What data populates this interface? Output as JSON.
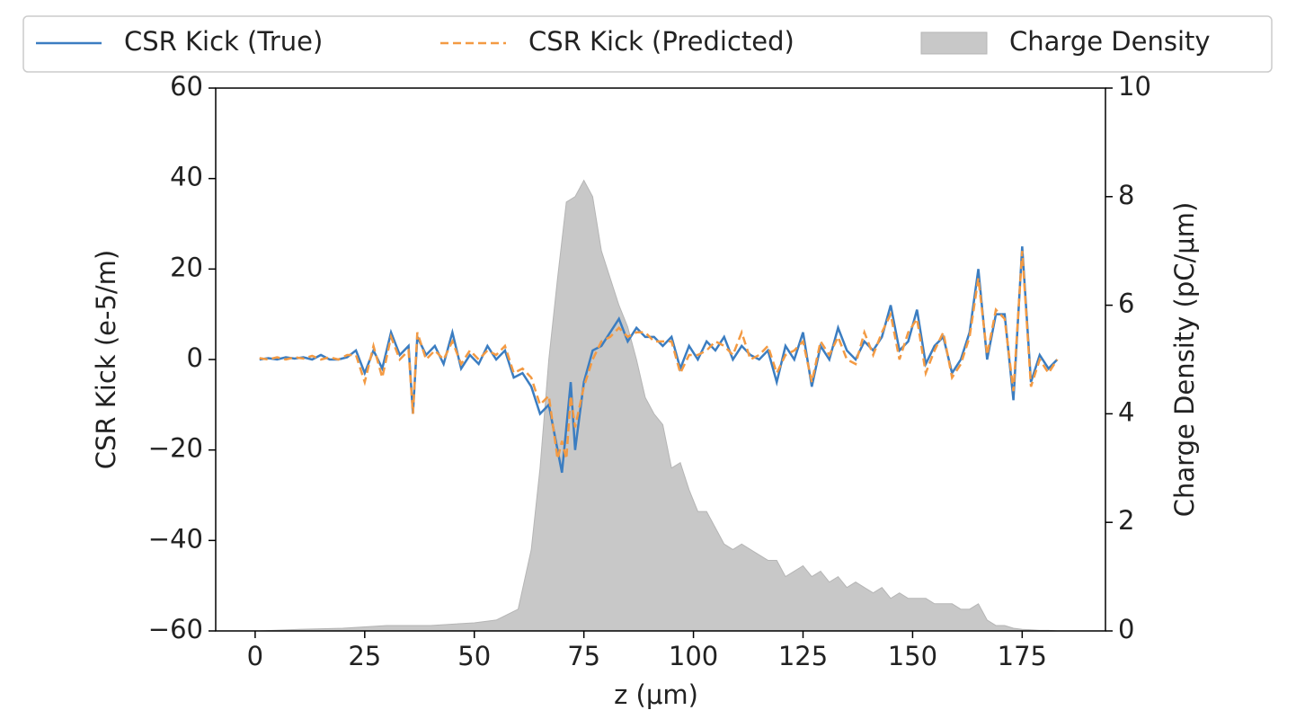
{
  "chart_data": {
    "type": "line",
    "xlabel": "z (μm)",
    "ylabel": "CSR Kick (e-5/m)",
    "y2label": "Charge Density (pC/μm)",
    "xlim": [
      -9,
      194
    ],
    "xticks": [
      0,
      25,
      50,
      75,
      100,
      125,
      150,
      175
    ],
    "ylim": [
      -60,
      60
    ],
    "yticks": [
      {
        "value": -60,
        "label": "−60"
      },
      {
        "value": -40,
        "label": "−40"
      },
      {
        "value": -20,
        "label": "−20"
      },
      0,
      20,
      40,
      60
    ],
    "y2lim": [
      0,
      10
    ],
    "y2ticks": [
      0,
      2,
      4,
      6,
      8,
      10
    ],
    "legend": "upper center",
    "series": [
      {
        "name": "CSR Kick (True)",
        "type": "line",
        "color": "#3b7dc1",
        "dash": false,
        "x": [
          1,
          3,
          5,
          7,
          9,
          11,
          13,
          15,
          17,
          19,
          21,
          23,
          25,
          27,
          29,
          31,
          33,
          35,
          36,
          37,
          39,
          41,
          43,
          45,
          47,
          49,
          51,
          53,
          55,
          57,
          59,
          61,
          63,
          65,
          67,
          69,
          70,
          71,
          72,
          73,
          75,
          77,
          79,
          81,
          83,
          85,
          87,
          89,
          91,
          93,
          95,
          97,
          99,
          101,
          103,
          105,
          107,
          109,
          111,
          113,
          115,
          117,
          119,
          121,
          123,
          125,
          127,
          129,
          131,
          133,
          135,
          137,
          139,
          141,
          143,
          145,
          147,
          149,
          151,
          153,
          155,
          157,
          159,
          161,
          163,
          165,
          167,
          169,
          171,
          173,
          175,
          177,
          179,
          181,
          183
        ],
        "values": [
          0,
          0.3,
          0,
          0.5,
          0.2,
          0.5,
          0,
          1,
          0,
          0,
          0.5,
          2,
          -3,
          2,
          -2,
          6,
          1,
          3,
          -12,
          5,
          1,
          3,
          -1,
          6,
          -2,
          1,
          -1,
          3,
          0,
          2,
          -4,
          -3,
          -6,
          -12,
          -10,
          -20,
          -25,
          -15,
          -5,
          -20,
          -5,
          2,
          3,
          6,
          9,
          4,
          7,
          5,
          5,
          3,
          5,
          -2,
          3,
          0,
          4,
          2,
          5,
          0,
          3,
          1,
          0,
          2,
          -5,
          3,
          0,
          6,
          -6,
          3,
          0,
          7,
          2,
          0,
          4,
          2,
          5,
          12,
          2,
          4,
          11,
          -1,
          3,
          5,
          -3,
          0,
          6,
          20,
          0,
          10,
          10,
          -9,
          25,
          -5,
          1,
          -2,
          0
        ]
      },
      {
        "name": "CSR Kick (Predicted)",
        "type": "line",
        "color": "#f39a43",
        "dash": true,
        "x": [
          1,
          3,
          5,
          7,
          9,
          11,
          13,
          15,
          17,
          19,
          21,
          23,
          25,
          27,
          29,
          31,
          33,
          35,
          36,
          37,
          39,
          41,
          43,
          45,
          47,
          49,
          51,
          53,
          55,
          57,
          59,
          61,
          63,
          65,
          67,
          69,
          70,
          71,
          72,
          73,
          75,
          77,
          79,
          81,
          83,
          85,
          87,
          89,
          91,
          93,
          95,
          97,
          99,
          101,
          103,
          105,
          107,
          109,
          111,
          113,
          115,
          117,
          119,
          121,
          123,
          125,
          127,
          129,
          131,
          133,
          135,
          137,
          139,
          141,
          143,
          145,
          147,
          149,
          151,
          153,
          155,
          157,
          159,
          161,
          163,
          165,
          167,
          169,
          171,
          173,
          175,
          177,
          179,
          181,
          183
        ],
        "values": [
          0.3,
          0,
          0.5,
          0,
          0.5,
          0.2,
          0.8,
          0,
          0.5,
          0,
          1,
          1,
          -5,
          3,
          -4,
          5,
          0,
          2,
          -12,
          6,
          0,
          2,
          0,
          4,
          -1,
          2,
          0,
          2,
          1,
          3,
          -3,
          -2,
          -4,
          -10,
          -8,
          -22,
          -18,
          -22,
          -8,
          -15,
          -6,
          0,
          4,
          5,
          7,
          5,
          6,
          6,
          4,
          4,
          4,
          -3,
          1,
          1,
          2,
          4,
          3,
          1,
          6,
          0,
          1,
          3,
          -3,
          1,
          2,
          4,
          -5,
          4,
          1,
          5,
          0,
          -1,
          6,
          1,
          6,
          10,
          0,
          6,
          9,
          -3,
          2,
          6,
          -4,
          -1,
          5,
          18,
          1,
          11,
          9,
          -7,
          24,
          -6,
          0,
          -3,
          0
        ]
      },
      {
        "name": "Charge Density",
        "type": "area",
        "axis": "y2",
        "color": "#c8c8c8",
        "x": [
          1,
          10,
          20,
          30,
          40,
          50,
          55,
          60,
          63,
          65,
          67,
          69,
          71,
          73,
          75,
          77,
          79,
          81,
          83,
          85,
          87,
          89,
          91,
          93,
          95,
          97,
          99,
          101,
          103,
          105,
          107,
          109,
          111,
          113,
          115,
          117,
          119,
          121,
          123,
          125,
          127,
          129,
          131,
          133,
          135,
          137,
          139,
          141,
          143,
          145,
          147,
          149,
          151,
          153,
          155,
          157,
          159,
          161,
          163,
          165,
          167,
          169,
          171,
          173,
          175,
          177,
          179,
          181,
          183
        ],
        "values": [
          0,
          0.03,
          0.05,
          0.1,
          0.1,
          0.15,
          0.2,
          0.4,
          1.5,
          3,
          5,
          6.5,
          7.9,
          8,
          8.3,
          8,
          7,
          6.5,
          6,
          5.6,
          5,
          4.3,
          4,
          3.8,
          3,
          3.1,
          2.6,
          2.2,
          2.2,
          1.9,
          1.6,
          1.5,
          1.6,
          1.5,
          1.4,
          1.3,
          1.3,
          1.0,
          1.1,
          1.2,
          1.0,
          1.1,
          0.9,
          1.0,
          0.8,
          0.9,
          0.8,
          0.7,
          0.8,
          0.6,
          0.7,
          0.6,
          0.6,
          0.6,
          0.5,
          0.5,
          0.5,
          0.4,
          0.4,
          0.5,
          0.2,
          0.1,
          0.1,
          0.05,
          0.03,
          0.02,
          0.01,
          0.01,
          0
        ]
      }
    ]
  }
}
